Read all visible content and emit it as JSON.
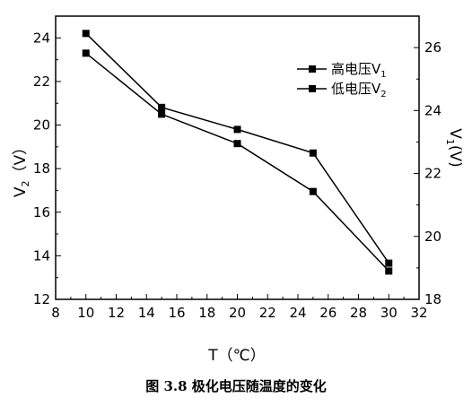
{
  "caption": "图 3.8 极化电压随温度的变化",
  "chart_data": {
    "type": "line",
    "x_axis": {
      "label": "T（℃）",
      "range": [
        8,
        32
      ],
      "ticks": [
        "8",
        "10",
        "12",
        "14",
        "16",
        "18",
        "20",
        "22",
        "24",
        "26",
        "28",
        "30",
        "32"
      ]
    },
    "y_axis_left": {
      "label_main": "V",
      "label_sub": "2",
      "label_unit": "（V）",
      "range": [
        12,
        25
      ],
      "ticks": [
        "12",
        "14",
        "16",
        "18",
        "20",
        "22",
        "24"
      ]
    },
    "y_axis_right": {
      "label_main": "V",
      "label_sub": "1",
      "label_unit": "(V)",
      "range": [
        18,
        27
      ],
      "ticks": [
        "18",
        "20",
        "22",
        "24",
        "26"
      ]
    },
    "legend_position": "top-right",
    "series": [
      {
        "name_main": "高电压V",
        "name_sub": "1",
        "axis": "right",
        "color": "#000000",
        "marker": "square",
        "x": [
          10,
          15,
          20,
          25,
          30
        ],
        "y": [
          26.45,
          24.1,
          23.4,
          22.65,
          19.15
        ]
      },
      {
        "name_main": "低电压V",
        "name_sub": "2",
        "axis": "left",
        "color": "#000000",
        "marker": "square",
        "x": [
          10,
          15,
          20,
          25,
          30
        ],
        "y": [
          23.3,
          20.5,
          19.15,
          16.95,
          13.3
        ]
      }
    ]
  }
}
